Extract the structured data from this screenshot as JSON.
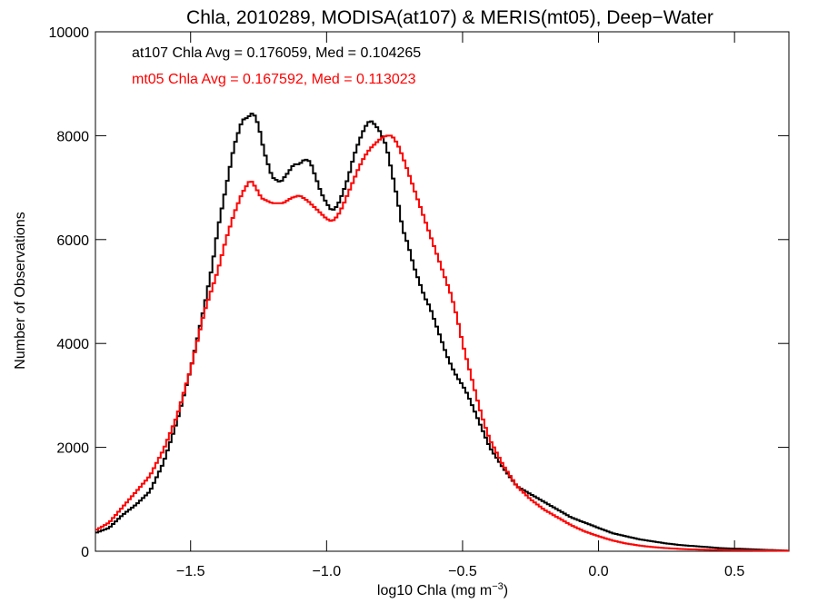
{
  "chart_data": {
    "type": "line",
    "title": "Chla, 2010289, MODISA(at107) & MERIS(mt05), Deep−Water",
    "xlabel_main": "log10 Chla (mg m",
    "xlabel_sup": "−3",
    "xlabel_close": ")",
    "ylabel": "Number of Observations",
    "xlim": [
      -1.85,
      0.7
    ],
    "ylim": [
      0,
      10000
    ],
    "x_ticks": [
      -1.5,
      -1.0,
      -0.5,
      0.0,
      0.5
    ],
    "x_tick_labels": [
      "−1.5",
      "−1.0",
      "−0.5",
      "0.0",
      "0.5"
    ],
    "y_ticks": [
      0,
      2000,
      4000,
      6000,
      8000,
      10000
    ],
    "y_tick_labels": [
      "0",
      "2000",
      "4000",
      "6000",
      "8000",
      "10000"
    ],
    "annotations": [
      {
        "text": "at107 Chla Avg = 0.176059, Med = 0.104265",
        "color": "#000000"
      },
      {
        "text": "mt05 Chla Avg = 0.167592, Med = 0.113023",
        "color": "#ff0000"
      }
    ],
    "series": [
      {
        "color": "#000000",
        "points": [
          [
            -1.85,
            350
          ],
          [
            -1.8,
            450
          ],
          [
            -1.75,
            700
          ],
          [
            -1.7,
            900
          ],
          [
            -1.65,
            1150
          ],
          [
            -1.6,
            1700
          ],
          [
            -1.55,
            2500
          ],
          [
            -1.5,
            3500
          ],
          [
            -1.45,
            4700
          ],
          [
            -1.42,
            5500
          ],
          [
            -1.4,
            6200
          ],
          [
            -1.37,
            7000
          ],
          [
            -1.34,
            7800
          ],
          [
            -1.31,
            8300
          ],
          [
            -1.29,
            8350
          ],
          [
            -1.27,
            8450
          ],
          [
            -1.25,
            8200
          ],
          [
            -1.23,
            7700
          ],
          [
            -1.2,
            7200
          ],
          [
            -1.17,
            7100
          ],
          [
            -1.14,
            7300
          ],
          [
            -1.12,
            7450
          ],
          [
            -1.1,
            7450
          ],
          [
            -1.08,
            7550
          ],
          [
            -1.06,
            7500
          ],
          [
            -1.04,
            7200
          ],
          [
            -1.02,
            6900
          ],
          [
            -1.0,
            6700
          ],
          [
            -0.98,
            6550
          ],
          [
            -0.96,
            6650
          ],
          [
            -0.94,
            6900
          ],
          [
            -0.92,
            7200
          ],
          [
            -0.9,
            7600
          ],
          [
            -0.88,
            7900
          ],
          [
            -0.86,
            8150
          ],
          [
            -0.84,
            8300
          ],
          [
            -0.82,
            8200
          ],
          [
            -0.8,
            8050
          ],
          [
            -0.78,
            7800
          ],
          [
            -0.76,
            7300
          ],
          [
            -0.74,
            6800
          ],
          [
            -0.72,
            6200
          ],
          [
            -0.7,
            5900
          ],
          [
            -0.68,
            5500
          ],
          [
            -0.66,
            5200
          ],
          [
            -0.64,
            4900
          ],
          [
            -0.62,
            4700
          ],
          [
            -0.6,
            4400
          ],
          [
            -0.58,
            4100
          ],
          [
            -0.56,
            3800
          ],
          [
            -0.54,
            3550
          ],
          [
            -0.52,
            3350
          ],
          [
            -0.5,
            3200
          ],
          [
            -0.48,
            3000
          ],
          [
            -0.46,
            2750
          ],
          [
            -0.44,
            2500
          ],
          [
            -0.42,
            2250
          ],
          [
            -0.4,
            2000
          ],
          [
            -0.35,
            1600
          ],
          [
            -0.3,
            1250
          ],
          [
            -0.25,
            1100
          ],
          [
            -0.2,
            950
          ],
          [
            -0.15,
            800
          ],
          [
            -0.1,
            650
          ],
          [
            -0.05,
            550
          ],
          [
            0.0,
            450
          ],
          [
            0.05,
            350
          ],
          [
            0.1,
            290
          ],
          [
            0.15,
            230
          ],
          [
            0.2,
            190
          ],
          [
            0.25,
            150
          ],
          [
            0.3,
            120
          ],
          [
            0.35,
            100
          ],
          [
            0.4,
            80
          ],
          [
            0.45,
            60
          ],
          [
            0.5,
            50
          ],
          [
            0.55,
            40
          ],
          [
            0.6,
            30
          ],
          [
            0.65,
            20
          ],
          [
            0.7,
            10
          ]
        ]
      },
      {
        "color": "#ff0000",
        "points": [
          [
            -1.85,
            400
          ],
          [
            -1.8,
            550
          ],
          [
            -1.75,
            850
          ],
          [
            -1.7,
            1150
          ],
          [
            -1.65,
            1450
          ],
          [
            -1.6,
            1950
          ],
          [
            -1.55,
            2600
          ],
          [
            -1.5,
            3500
          ],
          [
            -1.45,
            4600
          ],
          [
            -1.4,
            5400
          ],
          [
            -1.37,
            6000
          ],
          [
            -1.34,
            6500
          ],
          [
            -1.31,
            6900
          ],
          [
            -1.28,
            7150
          ],
          [
            -1.26,
            7000
          ],
          [
            -1.24,
            6800
          ],
          [
            -1.2,
            6700
          ],
          [
            -1.16,
            6700
          ],
          [
            -1.13,
            6800
          ],
          [
            -1.1,
            6850
          ],
          [
            -1.07,
            6750
          ],
          [
            -1.04,
            6600
          ],
          [
            -1.02,
            6500
          ],
          [
            -1.0,
            6400
          ],
          [
            -0.98,
            6350
          ],
          [
            -0.96,
            6450
          ],
          [
            -0.94,
            6650
          ],
          [
            -0.92,
            6900
          ],
          [
            -0.9,
            7150
          ],
          [
            -0.88,
            7400
          ],
          [
            -0.86,
            7600
          ],
          [
            -0.84,
            7750
          ],
          [
            -0.82,
            7850
          ],
          [
            -0.8,
            7950
          ],
          [
            -0.78,
            8000
          ],
          [
            -0.76,
            8000
          ],
          [
            -0.74,
            7850
          ],
          [
            -0.72,
            7600
          ],
          [
            -0.7,
            7300
          ],
          [
            -0.68,
            7000
          ],
          [
            -0.66,
            6700
          ],
          [
            -0.64,
            6400
          ],
          [
            -0.62,
            6100
          ],
          [
            -0.6,
            5800
          ],
          [
            -0.58,
            5500
          ],
          [
            -0.56,
            5200
          ],
          [
            -0.54,
            4900
          ],
          [
            -0.52,
            4500
          ],
          [
            -0.5,
            4000
          ],
          [
            -0.48,
            3600
          ],
          [
            -0.46,
            3200
          ],
          [
            -0.44,
            2800
          ],
          [
            -0.42,
            2450
          ],
          [
            -0.4,
            2150
          ],
          [
            -0.35,
            1650
          ],
          [
            -0.3,
            1250
          ],
          [
            -0.25,
            1000
          ],
          [
            -0.2,
            800
          ],
          [
            -0.15,
            650
          ],
          [
            -0.1,
            500
          ],
          [
            -0.05,
            380
          ],
          [
            0.0,
            290
          ],
          [
            0.05,
            210
          ],
          [
            0.1,
            150
          ],
          [
            0.15,
            110
          ],
          [
            0.2,
            80
          ],
          [
            0.25,
            60
          ],
          [
            0.3,
            45
          ],
          [
            0.35,
            35
          ],
          [
            0.4,
            28
          ],
          [
            0.5,
            20
          ],
          [
            0.6,
            15
          ],
          [
            0.7,
            10
          ]
        ]
      }
    ]
  }
}
